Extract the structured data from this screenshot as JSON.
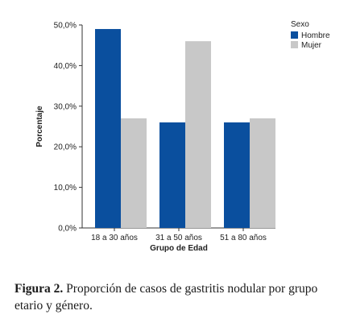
{
  "chart_data": {
    "type": "bar",
    "categories": [
      "18 a 30 años",
      "31 a 50 años",
      "51 a 80 años"
    ],
    "series": [
      {
        "name": "Hombre",
        "values": [
          49.0,
          26.0,
          26.0
        ],
        "color": "#0a4f9e"
      },
      {
        "name": "Mujer",
        "values": [
          27.0,
          46.0,
          27.0
        ],
        "color": "#c8c8c8"
      }
    ],
    "xlabel": "Grupo de Edad",
    "ylabel": "Porcentaje",
    "ylim": [
      0,
      50
    ],
    "yticks": [
      "0,0%",
      "10,0%",
      "20,0%",
      "30,0%",
      "40,0%",
      "50,0%"
    ],
    "legend_title": "Sexo",
    "legend_position": "top-right",
    "grid": false
  },
  "caption": {
    "label": "Figura 2.",
    "text": "Proporción de casos de gastritis nodular por grupo etario y género."
  }
}
